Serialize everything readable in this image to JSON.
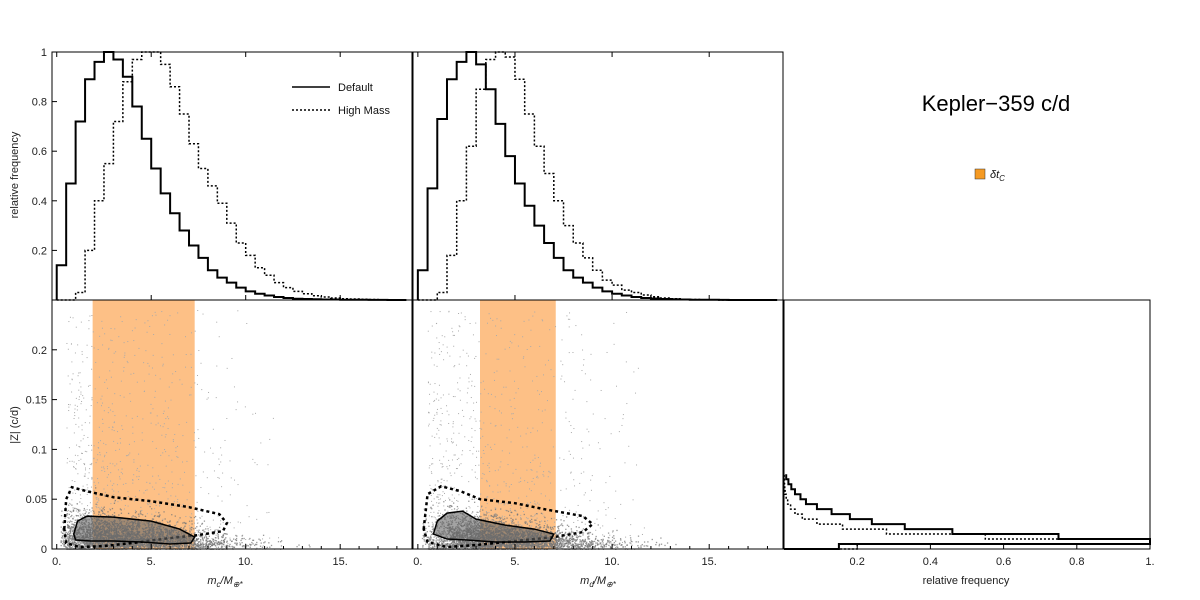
{
  "figure": {
    "title": "Kepler−359 c/d",
    "colors": {
      "band": "#fdc086",
      "scatter": "#777777",
      "contour_fill": "#666666",
      "line": "#000000",
      "legend_swatch": "#f59a23"
    }
  },
  "chart_data": [
    {
      "id": "hist_mc",
      "type": "histogram",
      "ylabel": "relative frequency",
      "yticks": [
        "0.2",
        "0.4",
        "0.6",
        "0.8",
        "1"
      ],
      "ylim": [
        0,
        1
      ],
      "xlim": [
        -0.25,
        18.8
      ],
      "bin_width": 0.5,
      "x_start": 0,
      "legend": {
        "position": "top-right",
        "entries": [
          {
            "label": "Default",
            "style": "solid"
          },
          {
            "label": "High Mass",
            "style": "dotted"
          }
        ]
      },
      "series": [
        {
          "name": "Default",
          "style": "solid",
          "values": [
            0.14,
            0.47,
            0.72,
            0.89,
            0.96,
            1.0,
            0.97,
            0.9,
            0.78,
            0.65,
            0.53,
            0.43,
            0.35,
            0.28,
            0.22,
            0.17,
            0.12,
            0.09,
            0.07,
            0.05,
            0.035,
            0.025,
            0.018,
            0.012,
            0.008,
            0.005,
            0.004,
            0.003,
            0.002,
            0.002,
            0.001,
            0.001,
            0.001,
            0.0005,
            0.0005,
            0,
            0
          ]
        },
        {
          "name": "High Mass",
          "style": "dotted",
          "values": [
            0,
            0,
            0.03,
            0.2,
            0.4,
            0.55,
            0.72,
            0.88,
            0.97,
            1.0,
            1.0,
            0.95,
            0.86,
            0.75,
            0.63,
            0.53,
            0.46,
            0.39,
            0.31,
            0.23,
            0.18,
            0.13,
            0.1,
            0.07,
            0.05,
            0.035,
            0.025,
            0.017,
            0.012,
            0.008,
            0.005,
            0.004,
            0.003,
            0.002,
            0.001,
            0.001,
            0
          ]
        }
      ]
    },
    {
      "id": "hist_md",
      "type": "histogram",
      "ylim": [
        0,
        1
      ],
      "xlim": [
        -0.25,
        18.8
      ],
      "bin_width": 0.5,
      "x_start": 0,
      "series": [
        {
          "name": "Default",
          "style": "solid",
          "values": [
            0.12,
            0.45,
            0.73,
            0.89,
            0.96,
            1.0,
            0.95,
            0.85,
            0.71,
            0.58,
            0.47,
            0.38,
            0.3,
            0.23,
            0.17,
            0.12,
            0.09,
            0.07,
            0.05,
            0.035,
            0.025,
            0.018,
            0.012,
            0.008,
            0.006,
            0.004,
            0.003,
            0.002,
            0.001,
            0.001,
            0.001,
            0.0005,
            0,
            0,
            0,
            0,
            0
          ]
        },
        {
          "name": "High Mass",
          "style": "dotted",
          "values": [
            0,
            0,
            0.03,
            0.18,
            0.4,
            0.62,
            0.85,
            0.97,
            1.0,
            0.98,
            0.89,
            0.75,
            0.62,
            0.51,
            0.4,
            0.3,
            0.23,
            0.17,
            0.12,
            0.08,
            0.06,
            0.04,
            0.03,
            0.02,
            0.013,
            0.008,
            0.005,
            0.003,
            0.002,
            0.001,
            0.001,
            0,
            0,
            0,
            0,
            0,
            0
          ]
        }
      ]
    },
    {
      "id": "scatter_mc",
      "type": "scatter",
      "xlabel_main": "m",
      "xlabel_sub": "c",
      "xlabel_rest": "/M",
      "xlabel_sub2": "⊕*",
      "ylabel": "|Z| (c/d)",
      "xticks": [
        "0.",
        "5.",
        "10.",
        "15."
      ],
      "yticks": [
        "0",
        "0.05",
        "0.1",
        "0.15",
        "0.2"
      ],
      "xlim": [
        -0.25,
        18.8
      ],
      "ylim": [
        0,
        0.25
      ],
      "band": [
        1.9,
        7.3
      ],
      "contour_solid": [
        [
          0.9,
          0.015
        ],
        [
          1.1,
          0.028
        ],
        [
          1.6,
          0.033
        ],
        [
          3,
          0.032
        ],
        [
          5,
          0.028
        ],
        [
          6.5,
          0.02
        ],
        [
          7.3,
          0.012
        ],
        [
          7.1,
          0.006
        ],
        [
          6,
          0.005
        ],
        [
          4.5,
          0.007
        ],
        [
          3,
          0.008
        ],
        [
          1.8,
          0.008
        ],
        [
          1.0,
          0.009
        ]
      ],
      "contour_dashed": [
        [
          0.4,
          0.02
        ],
        [
          0.5,
          0.05
        ],
        [
          0.8,
          0.062
        ],
        [
          1.6,
          0.058
        ],
        [
          3,
          0.052
        ],
        [
          5,
          0.048
        ],
        [
          7,
          0.042
        ],
        [
          8.6,
          0.035
        ],
        [
          9,
          0.026
        ],
        [
          8.8,
          0.018
        ],
        [
          7.5,
          0.014
        ],
        [
          6,
          0.011
        ],
        [
          4,
          0.006
        ],
        [
          2.5,
          0.003
        ],
        [
          1.2,
          0.002
        ],
        [
          0.5,
          0.006
        ]
      ],
      "scatter_dark": {
        "x_peak": 2.5,
        "x_spread": 3.0,
        "y_scale": 0.018
      },
      "scatter_sparse": {
        "x_range": [
          0.5,
          12
        ],
        "y_max": 0.24
      }
    },
    {
      "id": "scatter_md",
      "type": "scatter",
      "xlabel_main": "m",
      "xlabel_sub": "d",
      "xlabel_rest": "/M",
      "xlabel_sub2": "⊕*",
      "xticks": [
        "0.",
        "5.",
        "10.",
        "15."
      ],
      "xlim": [
        -0.25,
        18.8
      ],
      "ylim": [
        0,
        0.25
      ],
      "band": [
        3.2,
        7.1
      ],
      "contour_solid": [
        [
          0.8,
          0.015
        ],
        [
          1.0,
          0.028
        ],
        [
          1.5,
          0.036
        ],
        [
          2.3,
          0.038
        ],
        [
          3,
          0.03
        ],
        [
          4.5,
          0.024
        ],
        [
          6,
          0.02
        ],
        [
          7.0,
          0.015
        ],
        [
          6.8,
          0.008
        ],
        [
          5.5,
          0.007
        ],
        [
          4,
          0.007
        ],
        [
          2.5,
          0.009
        ],
        [
          1.5,
          0.01
        ]
      ],
      "contour_dashed": [
        [
          0.3,
          0.02
        ],
        [
          0.5,
          0.055
        ],
        [
          1.2,
          0.063
        ],
        [
          2.2,
          0.058
        ],
        [
          3.2,
          0.05
        ],
        [
          5,
          0.046
        ],
        [
          6.5,
          0.04
        ],
        [
          8.5,
          0.033
        ],
        [
          9.0,
          0.025
        ],
        [
          8.5,
          0.017
        ],
        [
          7,
          0.012
        ],
        [
          5,
          0.008
        ],
        [
          3,
          0.004
        ],
        [
          1.5,
          0.002
        ],
        [
          0.5,
          0.007
        ]
      ],
      "scatter_dark": {
        "x_peak": 3.0,
        "x_spread": 3.0,
        "y_scale": 0.018
      },
      "scatter_sparse": {
        "x_range": [
          0.5,
          12
        ],
        "y_max": 0.24
      }
    },
    {
      "id": "hist_z",
      "type": "histogram_horizontal",
      "xlabel": "relative frequency",
      "xticks": [
        "0.2",
        "0.4",
        "0.6",
        "0.8",
        "1."
      ],
      "xlim": [
        0,
        1
      ],
      "ylim": [
        0,
        0.25
      ],
      "legend": {
        "position": "right",
        "entries": [
          {
            "label": "δt",
            "sub": "C",
            "color": "#f59a23"
          }
        ]
      },
      "series": [
        {
          "name": "Default",
          "style": "solid",
          "edges": [
            0,
            0.005,
            0.01,
            0.015,
            0.02,
            0.025,
            0.03,
            0.035,
            0.04,
            0.045,
            0.05,
            0.055,
            0.06,
            0.065,
            0.07,
            0.075
          ],
          "values": [
            0.15,
            1.0,
            0.75,
            0.46,
            0.33,
            0.24,
            0.18,
            0.13,
            0.09,
            0.06,
            0.045,
            0.03,
            0.02,
            0.012,
            0.006
          ]
        },
        {
          "name": "High Mass",
          "style": "dotted",
          "edges": [
            0,
            0.005,
            0.01,
            0.015,
            0.02,
            0.025,
            0.03,
            0.035,
            0.04,
            0.045,
            0.05,
            0.055,
            0.06,
            0.065,
            0.07,
            0.075
          ],
          "values": [
            0.2,
            1.0,
            0.55,
            0.28,
            0.16,
            0.09,
            0.05,
            0.03,
            0.018,
            0.01,
            0.006,
            0.003,
            0.002,
            0.001,
            0.0005
          ]
        }
      ]
    }
  ]
}
